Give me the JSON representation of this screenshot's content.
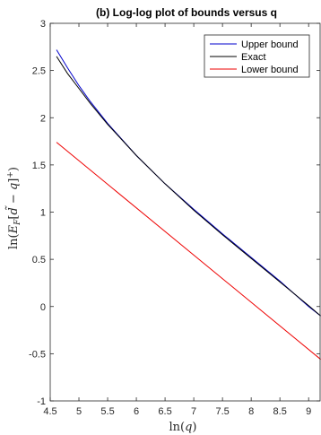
{
  "chart_data": {
    "type": "line",
    "title": "(b) Log-log plot of bounds versus q",
    "xlabel": "ln(q)",
    "ylabel": "ln(E_F[d̃ − q]⁺)",
    "xlim": [
      4.5,
      9.2
    ],
    "ylim": [
      -1,
      3
    ],
    "xticks": [
      "4.5",
      "5",
      "5.5",
      "6",
      "6.5",
      "7",
      "7.5",
      "8",
      "8.5",
      "9"
    ],
    "yticks": [
      "-1",
      "-0.5",
      "0",
      "0.5",
      "1",
      "1.5",
      "2",
      "2.5",
      "3"
    ],
    "legend_position": "top-right",
    "grid": false,
    "series": [
      {
        "name": "Upper bound",
        "color": "#0000cc",
        "x": [
          4.61,
          4.8,
          5.0,
          5.2,
          5.5,
          6.0,
          6.5,
          7.0,
          7.5,
          8.0,
          8.5,
          9.0,
          9.21
        ],
        "y": [
          2.72,
          2.53,
          2.34,
          2.17,
          1.94,
          1.6,
          1.3,
          1.03,
          0.77,
          0.52,
          0.27,
          0.0,
          -0.1
        ]
      },
      {
        "name": "Exact",
        "color": "#000000",
        "x": [
          4.61,
          4.8,
          5.0,
          5.2,
          5.5,
          6.0,
          6.5,
          7.0,
          7.5,
          8.0,
          8.5,
          9.0,
          9.21
        ],
        "y": [
          2.65,
          2.47,
          2.31,
          2.15,
          1.93,
          1.6,
          1.3,
          1.02,
          0.76,
          0.51,
          0.26,
          0.01,
          -0.1
        ]
      },
      {
        "name": "Lower bound",
        "color": "#ee0000",
        "x": [
          4.61,
          9.21
        ],
        "y": [
          1.74,
          -0.56
        ]
      }
    ]
  },
  "axes": {
    "xlabel_prefix": "ln(",
    "xlabel_var": "q",
    "xlabel_suffix": ")"
  }
}
